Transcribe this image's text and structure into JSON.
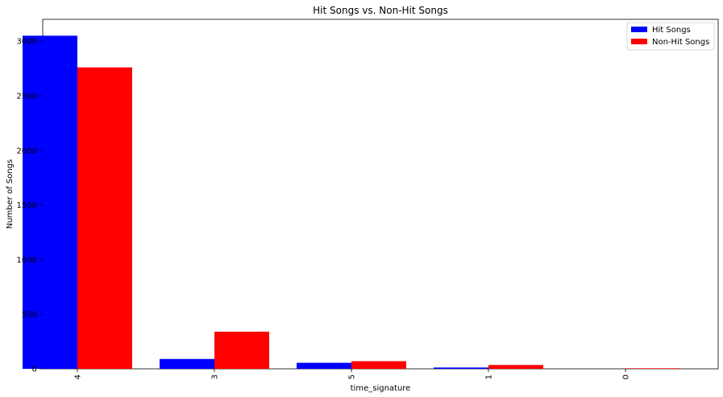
{
  "chart_data": {
    "type": "bar",
    "title": "Hit Songs vs. Non-Hit Songs",
    "xlabel": "time_signature",
    "ylabel": "Number of Songs",
    "categories": [
      "4",
      "3",
      "5",
      "1",
      "0"
    ],
    "series": [
      {
        "name": "Hit Songs",
        "color": "#0000ff",
        "values": [
          3050,
          90,
          55,
          12,
          0
        ]
      },
      {
        "name": "Non-Hit Songs",
        "color": "#ff0000",
        "values": [
          2760,
          340,
          70,
          35,
          5
        ]
      }
    ],
    "ylim": [
      0,
      3200
    ],
    "yticks": [
      0,
      500,
      1000,
      1500,
      2000,
      2500,
      3000
    ],
    "grid": false,
    "legend_position": "top-right",
    "xtick_rotation": -90
  }
}
